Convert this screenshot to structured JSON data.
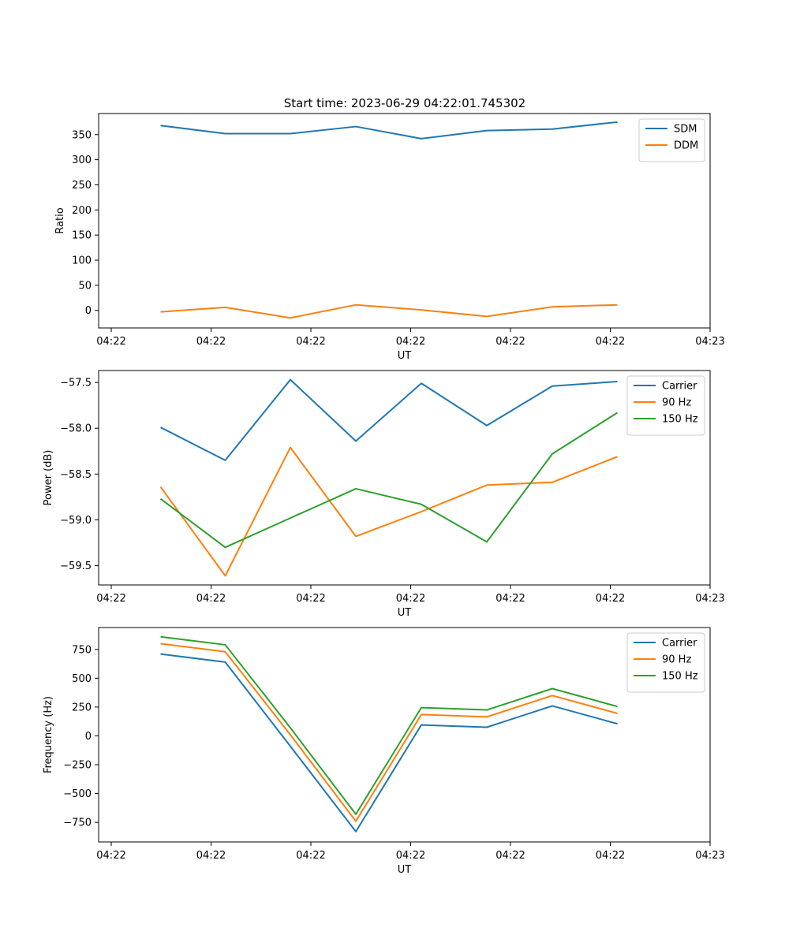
{
  "figure": {
    "title": "Start time: 2023-06-29 04:22:01.745302"
  },
  "colors": {
    "series1": "#1f77b4",
    "series2": "#ff7f0e",
    "series3": "#2ca02c",
    "axes": "#000000",
    "background": "#ffffff",
    "legend_border": "#cccccc"
  },
  "chart_data": [
    {
      "type": "line",
      "title": "Start time: 2023-06-29 04:22:01.745302",
      "xlabel": "UT",
      "ylabel": "Ratio",
      "xticks": [
        "04:22",
        "04:22",
        "04:22",
        "04:22",
        "04:22",
        "04:22",
        "04:23"
      ],
      "ylim": [
        -35,
        392
      ],
      "yticks": [
        0,
        50,
        100,
        150,
        200,
        250,
        300,
        350
      ],
      "legend_position": "upper right",
      "grid": false,
      "series": [
        {
          "name": "SDM",
          "color": "#1f77b4",
          "values": [
            368,
            352,
            352,
            366,
            342,
            358,
            361,
            375
          ]
        },
        {
          "name": "DDM",
          "color": "#ff7f0e",
          "values": [
            -3,
            6,
            -15,
            11,
            1,
            -12,
            7,
            11
          ]
        }
      ]
    },
    {
      "type": "line",
      "title": "",
      "xlabel": "UT",
      "ylabel": "Power (dB)",
      "xticks": [
        "04:22",
        "04:22",
        "04:22",
        "04:22",
        "04:22",
        "04:22",
        "04:23"
      ],
      "ylim": [
        -59.71,
        -57.37
      ],
      "yticks": [
        -59.5,
        -59.0,
        -58.5,
        -58.0,
        -57.5
      ],
      "legend_position": "upper right",
      "grid": false,
      "series": [
        {
          "name": "Carrier",
          "color": "#1f77b4",
          "values": [
            -57.99,
            -58.35,
            -57.47,
            -58.14,
            -57.51,
            -57.97,
            -57.54,
            -57.49
          ]
        },
        {
          "name": "90 Hz",
          "color": "#ff7f0e",
          "values": [
            -58.64,
            -59.61,
            -58.21,
            -59.18,
            -58.91,
            -58.62,
            -58.59,
            -58.31
          ]
        },
        {
          "name": "150 Hz",
          "color": "#2ca02c",
          "values": [
            -58.77,
            -59.3,
            -58.98,
            -58.66,
            -58.83,
            -59.24,
            -58.28,
            -57.83
          ]
        }
      ]
    },
    {
      "type": "line",
      "title": "",
      "xlabel": "UT",
      "ylabel": "Frequency (Hz)",
      "xticks": [
        "04:22",
        "04:22",
        "04:22",
        "04:22",
        "04:22",
        "04:22",
        "04:23"
      ],
      "ylim": [
        -920,
        940
      ],
      "yticks": [
        -750,
        -500,
        -250,
        0,
        250,
        500,
        750
      ],
      "legend_position": "upper right",
      "grid": false,
      "series": [
        {
          "name": "Carrier",
          "color": "#1f77b4",
          "values": [
            710,
            640,
            -90,
            -830,
            95,
            75,
            260,
            105
          ]
        },
        {
          "name": "90 Hz",
          "color": "#ff7f0e",
          "values": [
            800,
            730,
            10,
            -740,
            185,
            165,
            350,
            195
          ]
        },
        {
          "name": "150 Hz",
          "color": "#2ca02c",
          "values": [
            860,
            790,
            70,
            -680,
            245,
            225,
            410,
            255
          ]
        }
      ]
    }
  ]
}
